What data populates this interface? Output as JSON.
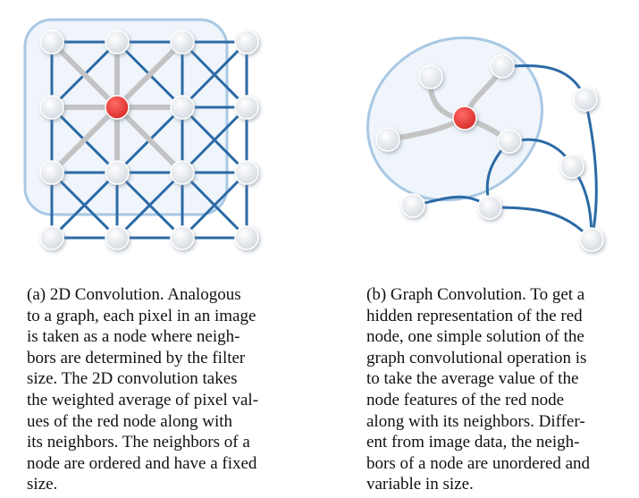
{
  "colors": {
    "edge": "#2b6aa6",
    "gray_edge": "#c4c4c4",
    "node_fill": "#f1f3f6",
    "node_stroke": "#ffffff",
    "red_node": "#e8403c",
    "region_stroke": "#a9c8e4",
    "region_fill": "#dbe8f5"
  },
  "panel_a": {
    "icon": "grid-graph-icon",
    "caption_lines": [
      "(a) 2D Convolution. Analogous",
      "to a graph, each pixel in an image",
      "is taken as a node where neigh-",
      "bors are determined by the filter",
      "size. The 2D convolution takes",
      "the weighted average of pixel val-",
      "ues of the red node along with",
      "its neighbors. The neighbors of a",
      "node are ordered and have a fixed",
      "size."
    ]
  },
  "panel_b": {
    "icon": "graph-network-icon",
    "caption_lines": [
      "(b) Graph Convolution. To get a",
      "hidden representation of the red",
      "node, one simple solution of the",
      "graph convolutional operation is",
      "to take the average value of the",
      "node features of the red node",
      "along with its neighbors. Differ-",
      "ent from image data, the neigh-",
      "bors of a node are unordered and",
      "variable in size."
    ]
  }
}
